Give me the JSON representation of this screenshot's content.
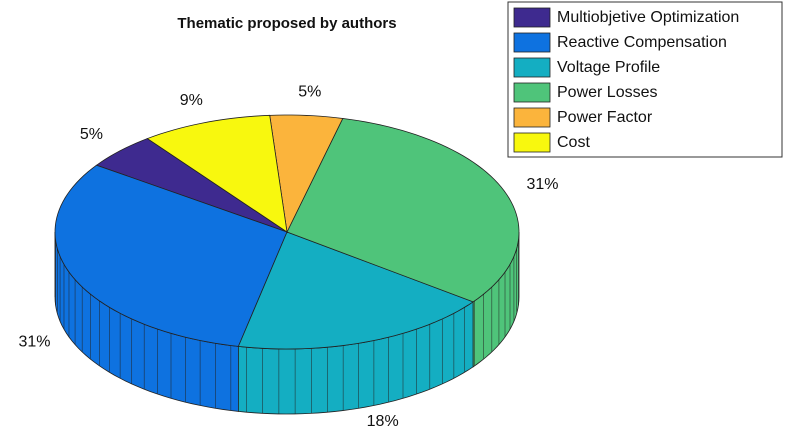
{
  "chart_data": {
    "type": "pie3d",
    "title": "Thematic proposed by authors",
    "categories": [
      "Multiobjetive Optimization",
      "Reactive Compensation",
      "Voltage Profile",
      "Power Losses",
      "Power Factor",
      "Cost"
    ],
    "values": [
      5,
      31,
      18,
      31,
      5,
      9
    ],
    "value_labels": [
      "5%",
      "31%",
      "18%",
      "31%",
      "5%",
      "9%"
    ],
    "colors": [
      "#3e2a8f",
      "#0e72e0",
      "#14aec2",
      "#4fc47a",
      "#fbb43c",
      "#f8f80e"
    ],
    "legend": "upper right"
  }
}
